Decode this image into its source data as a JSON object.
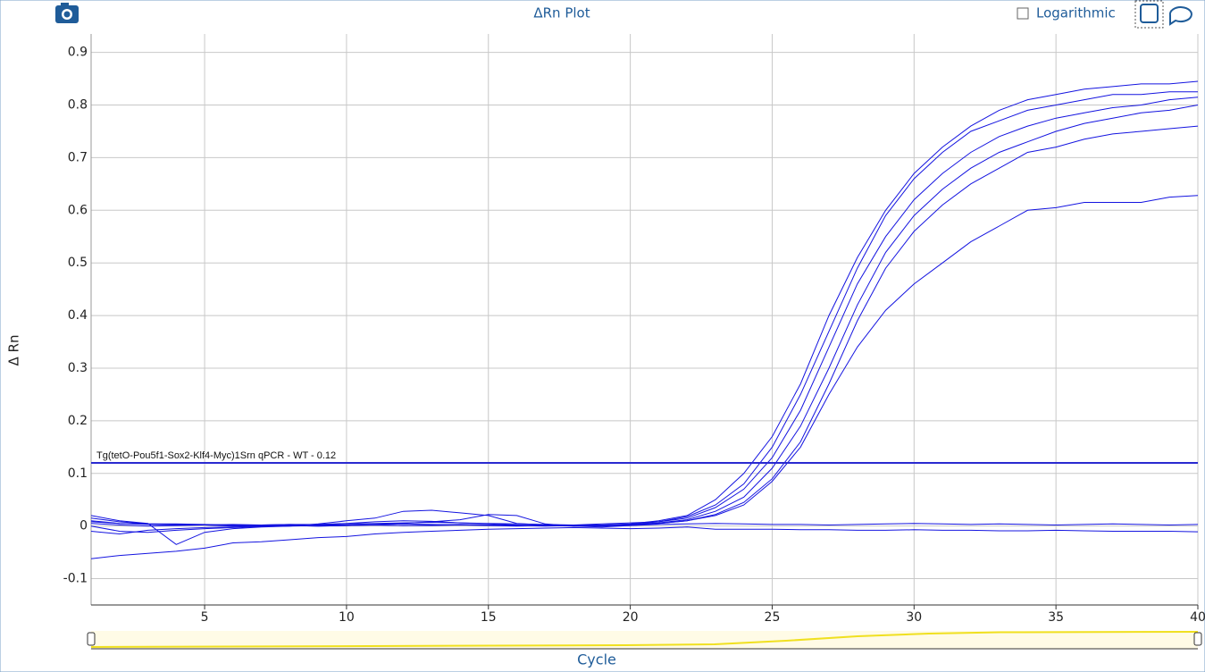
{
  "chart_data": {
    "type": "line",
    "title": "ΔRn Plot",
    "x_label": "Cycle",
    "y_label": "Δ Rn",
    "log_toggle_label": "Logarithmic",
    "log_scale": false,
    "grid": true,
    "threshold": 0.12,
    "threshold_label": "Tg(tetO-Pou5f1-Sox2-Klf4-Myc)1Srn qPCR - WT - 0.12",
    "threshold_color": "#2a2ad0",
    "xlim": [
      1,
      40
    ],
    "ylim": [
      -0.15,
      0.935
    ],
    "xticks": [
      5,
      10,
      15,
      20,
      25,
      30,
      35,
      40
    ],
    "yticks": [
      -0.1,
      0,
      0.1,
      0.2,
      0.3,
      0.4,
      0.5,
      0.6,
      0.7,
      0.8,
      0.9
    ],
    "x": [
      1,
      2,
      3,
      4,
      5,
      6,
      7,
      8,
      9,
      10,
      11,
      12,
      13,
      14,
      15,
      16,
      17,
      18,
      19,
      20,
      21,
      22,
      23,
      24,
      25,
      26,
      27,
      28,
      29,
      30,
      31,
      32,
      33,
      34,
      35,
      36,
      37,
      38,
      39,
      40
    ],
    "series": [
      {
        "color": "#1414e0",
        "values": [
          0.01,
          0.005,
          0.003,
          0.002,
          0.002,
          0.001,
          0.002,
          0.003,
          0.002,
          0.002,
          0.003,
          0.004,
          0.003,
          0.002,
          0.002,
          0.001,
          0.002,
          0.001,
          0.002,
          0.004,
          0.01,
          0.02,
          0.05,
          0.1,
          0.17,
          0.27,
          0.4,
          0.51,
          0.6,
          0.67,
          0.72,
          0.76,
          0.79,
          0.81,
          0.82,
          0.83,
          0.835,
          0.84,
          0.84,
          0.845
        ]
      },
      {
        "color": "#1414e0",
        "values": [
          0.015,
          0.008,
          0.004,
          0.003,
          0.002,
          0.0,
          0.001,
          0.002,
          0.003,
          0.005,
          0.008,
          0.01,
          0.009,
          0.006,
          0.004,
          0.002,
          0.001,
          0.0,
          0.001,
          0.003,
          0.008,
          0.015,
          0.035,
          0.07,
          0.13,
          0.22,
          0.34,
          0.46,
          0.55,
          0.62,
          0.67,
          0.71,
          0.74,
          0.76,
          0.775,
          0.785,
          0.795,
          0.8,
          0.81,
          0.815
        ]
      },
      {
        "color": "#1414e0",
        "values": [
          -0.01,
          -0.015,
          -0.008,
          -0.005,
          -0.003,
          -0.002,
          0.0,
          0.001,
          0.0,
          0.001,
          0.002,
          0.001,
          0.002,
          0.003,
          0.002,
          0.001,
          0.0,
          0.001,
          0.002,
          0.003,
          0.006,
          0.012,
          0.028,
          0.055,
          0.11,
          0.19,
          0.3,
          0.42,
          0.52,
          0.59,
          0.64,
          0.68,
          0.71,
          0.73,
          0.75,
          0.765,
          0.775,
          0.785,
          0.79,
          0.8
        ]
      },
      {
        "color": "#1414e0",
        "values": [
          0.02,
          0.01,
          0.005,
          -0.035,
          -0.012,
          -0.005,
          -0.002,
          0.0,
          0.004,
          0.01,
          0.015,
          0.028,
          0.03,
          0.025,
          0.02,
          0.005,
          0.002,
          0.001,
          0.0,
          0.002,
          0.005,
          0.01,
          0.022,
          0.045,
          0.09,
          0.16,
          0.27,
          0.39,
          0.49,
          0.56,
          0.61,
          0.65,
          0.68,
          0.71,
          0.72,
          0.735,
          0.745,
          0.75,
          0.755,
          0.76
        ]
      },
      {
        "color": "#1414e0",
        "values": [
          0.0,
          -0.01,
          -0.012,
          -0.008,
          -0.005,
          -0.003,
          -0.001,
          0.0,
          0.001,
          0.002,
          0.003,
          0.005,
          0.008,
          0.012,
          0.022,
          0.02,
          0.004,
          0.0,
          -0.002,
          0.001,
          0.005,
          0.01,
          0.02,
          0.04,
          0.085,
          0.15,
          0.25,
          0.34,
          0.41,
          0.46,
          0.5,
          0.54,
          0.57,
          0.6,
          0.605,
          0.615,
          0.615,
          0.615,
          0.625,
          0.628
        ]
      },
      {
        "color": "#1414e0",
        "values": [
          0.005,
          0.002,
          0.0,
          0.001,
          0.002,
          0.003,
          0.002,
          0.001,
          0.0,
          0.001,
          0.002,
          0.001,
          0.001,
          0.002,
          0.001,
          0.0,
          0.001,
          0.002,
          0.004,
          0.006,
          0.008,
          0.018,
          0.04,
          0.08,
          0.15,
          0.25,
          0.37,
          0.49,
          0.59,
          0.66,
          0.71,
          0.75,
          0.77,
          0.79,
          0.8,
          0.81,
          0.82,
          0.82,
          0.825,
          0.825
        ]
      },
      {
        "color": "#1414e0",
        "values": [
          0.008,
          0.005,
          0.004,
          0.004,
          0.003,
          0.002,
          0.002,
          0.003,
          0.003,
          0.004,
          0.005,
          0.006,
          0.007,
          0.006,
          0.005,
          0.004,
          0.003,
          0.002,
          0.002,
          0.001,
          0.003,
          0.004,
          0.005,
          0.004,
          0.003,
          0.003,
          0.002,
          0.003,
          0.004,
          0.005,
          0.004,
          0.003,
          0.004,
          0.003,
          0.002,
          0.003,
          0.004,
          0.003,
          0.002,
          0.003
        ]
      },
      {
        "color": "#1414e0",
        "values": [
          -0.062,
          -0.056,
          -0.052,
          -0.048,
          -0.042,
          -0.032,
          -0.03,
          -0.026,
          -0.022,
          -0.02,
          -0.015,
          -0.012,
          -0.01,
          -0.008,
          -0.006,
          -0.005,
          -0.004,
          -0.003,
          -0.004,
          -0.005,
          -0.004,
          -0.002,
          -0.006,
          -0.006,
          -0.006,
          -0.007,
          -0.007,
          -0.008,
          -0.008,
          -0.007,
          -0.008,
          -0.008,
          -0.009,
          -0.009,
          -0.008,
          -0.009,
          -0.01,
          -0.01,
          -0.01,
          -0.011
        ]
      }
    ]
  }
}
